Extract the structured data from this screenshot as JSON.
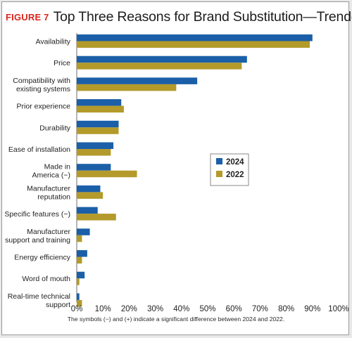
{
  "figure_label": "FIGURE 7",
  "footnote": "The symbols (−) and (+) indicate a significant difference between 2024 and 2022.",
  "colors": {
    "2024": "#1b5fa8",
    "2022": "#b39a2a"
  },
  "chart_data": {
    "type": "bar",
    "orientation": "horizontal",
    "title": "Top Three Reasons for Brand Substitution—Trended",
    "categories": [
      [
        "Availability"
      ],
      [
        "Price"
      ],
      [
        "Compatibility with",
        "existing systems"
      ],
      [
        "Prior experience"
      ],
      [
        "Durability"
      ],
      [
        "Ease of installation"
      ],
      [
        "Made in",
        "America (−)"
      ],
      [
        "Manufacturer",
        "reputation"
      ],
      [
        "Specific features (−)"
      ],
      [
        "Manufacturer",
        "support and training"
      ],
      [
        "Energy efficiency"
      ],
      [
        "Word of mouth"
      ],
      [
        "Real-time technical",
        "support"
      ]
    ],
    "series": [
      {
        "name": "2024",
        "values": [
          90,
          65,
          46,
          17,
          16,
          14,
          13,
          9,
          8,
          5,
          4,
          3,
          1
        ]
      },
      {
        "name": "2022",
        "values": [
          89,
          63,
          38,
          18,
          16,
          13,
          23,
          10,
          15,
          2,
          2,
          1,
          2
        ]
      }
    ],
    "xlim": [
      0,
      100
    ],
    "xticks": [
      "0%",
      "10%",
      "20%",
      "30%",
      "40%",
      "50%",
      "60%",
      "70%",
      "80%",
      "90%",
      "100%"
    ],
    "grid": false,
    "legend_position": "right-middle"
  }
}
